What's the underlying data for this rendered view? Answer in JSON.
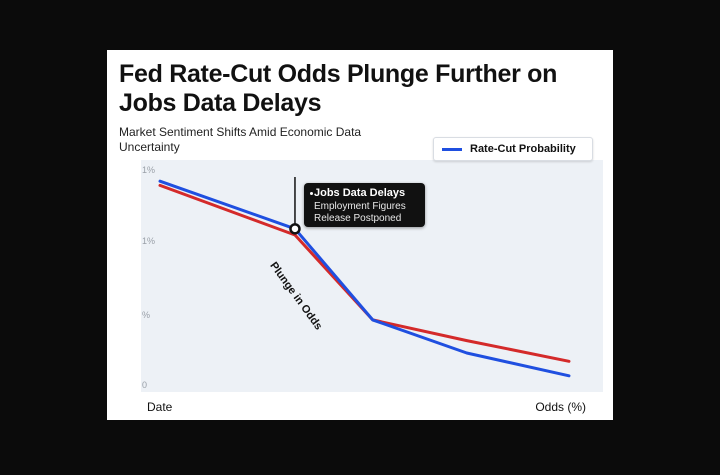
{
  "chart_data": {
    "type": "line",
    "title": "Fed Rate-Cut Odds Plunge Further on Jobs Data Delays",
    "subtitle": "Market Sentiment Shifts Amid Economic Data Uncertainty",
    "xlabel_left": "Date",
    "xlabel_right": "Odds (%)",
    "y_tick_labels": [
      "0",
      "%",
      "1%",
      "1%"
    ],
    "grid": false,
    "legend": {
      "placement": "top-right",
      "entries": [
        "Rate-Cut Probability"
      ]
    },
    "series": [
      {
        "name": "Rate-Cut Probability",
        "color": "#1f4fe0",
        "values": [
          0.97,
          0.74,
          0.3,
          0.14,
          0.03
        ]
      },
      {
        "color": "#d42a2a",
        "values": [
          0.95,
          0.71,
          0.3,
          0.2,
          0.1
        ]
      }
    ],
    "x": [
      0,
      0.33,
      0.52,
      0.75,
      1.0
    ],
    "ylim": [
      0,
      1
    ],
    "annotations": {
      "callout_title": "Jobs Data Delays",
      "callout_line1": "Employment Figures",
      "callout_line2": "Release Postponed",
      "segment_label": "Plunge in Odds"
    }
  }
}
